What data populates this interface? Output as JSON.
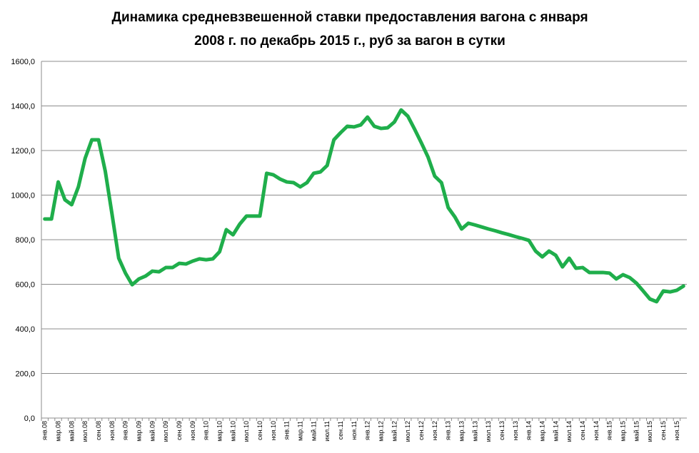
{
  "chart_data": {
    "type": "line",
    "title_lines": [
      "Динамика средневзвешенной ставки предоставления вагона с января",
      "2008 г. по декабрь 2015 г., руб за вагон в сутки"
    ],
    "categories": [
      "янв.08",
      null,
      "мар.08",
      null,
      "май.08",
      null,
      "июл.08",
      null,
      "сен.08",
      null,
      "ноя.08",
      null,
      "янв.09",
      null,
      "мар.09",
      null,
      "май.09",
      null,
      "июл.09",
      null,
      "сен.09",
      null,
      "ноя.09",
      null,
      "янв.10",
      null,
      "мар.10",
      null,
      "май.10",
      null,
      "июл.10",
      null,
      "сен.10",
      null,
      "ноя.10",
      null,
      "янв.11",
      null,
      "мар.11",
      null,
      "май.11",
      null,
      "июл.11",
      null,
      "сен.11",
      null,
      "ноя.11",
      null,
      "янв.12",
      null,
      "мар.12",
      null,
      "май.12",
      null,
      "июл.12",
      null,
      "сен.12",
      null,
      "ноя.12",
      null,
      "янв.13",
      null,
      "мар.13",
      null,
      "май.13",
      null,
      "июл.13",
      null,
      "сен.13",
      null,
      "ноя.13",
      null,
      "янв.14",
      null,
      "мар.14",
      null,
      "май.14",
      null,
      "июл.14",
      null,
      "сен.14",
      null,
      "ноя.14",
      null,
      "янв.15",
      null,
      "мар.15",
      null,
      "май.15",
      null,
      "июл.15",
      null,
      "сен.15",
      null,
      "ноя.15",
      null
    ],
    "values": [
      893,
      893,
      1059,
      979,
      957,
      1037,
      1165,
      1248,
      1248,
      1107,
      915,
      717,
      650,
      598,
      624,
      637,
      659,
      656,
      675,
      675,
      694,
      691,
      704,
      714,
      710,
      714,
      746,
      845,
      822,
      870,
      906,
      906,
      906,
      1098,
      1091,
      1072,
      1059,
      1056,
      1037,
      1056,
      1098,
      1104,
      1133,
      1248,
      1280,
      1309,
      1306,
      1315,
      1350,
      1309,
      1299,
      1302,
      1328,
      1382,
      1354,
      1296,
      1235,
      1171,
      1085,
      1056,
      944,
      902,
      848,
      874,
      866,
      857,
      848,
      840,
      831,
      823,
      814,
      806,
      797,
      749,
      723,
      749,
      730,
      678,
      717,
      672,
      675,
      653,
      653,
      653,
      650,
      624,
      643,
      630,
      605,
      570,
      534,
      522,
      570,
      566,
      573,
      592
    ],
    "color": "#1fae4b",
    "ylim": [
      0,
      1600
    ],
    "yticks": [
      {
        "value": 0,
        "label": "0,0"
      },
      {
        "value": 200,
        "label": "200,0"
      },
      {
        "value": 400,
        "label": "400,0"
      },
      {
        "value": 600,
        "label": "600,0"
      },
      {
        "value": 800,
        "label": "800,0"
      },
      {
        "value": 1000,
        "label": "1000,0"
      },
      {
        "value": 1200,
        "label": "1200,0"
      },
      {
        "value": 1400,
        "label": "1400,0"
      },
      {
        "value": 1600,
        "label": "1600,0"
      }
    ],
    "grid": true
  }
}
